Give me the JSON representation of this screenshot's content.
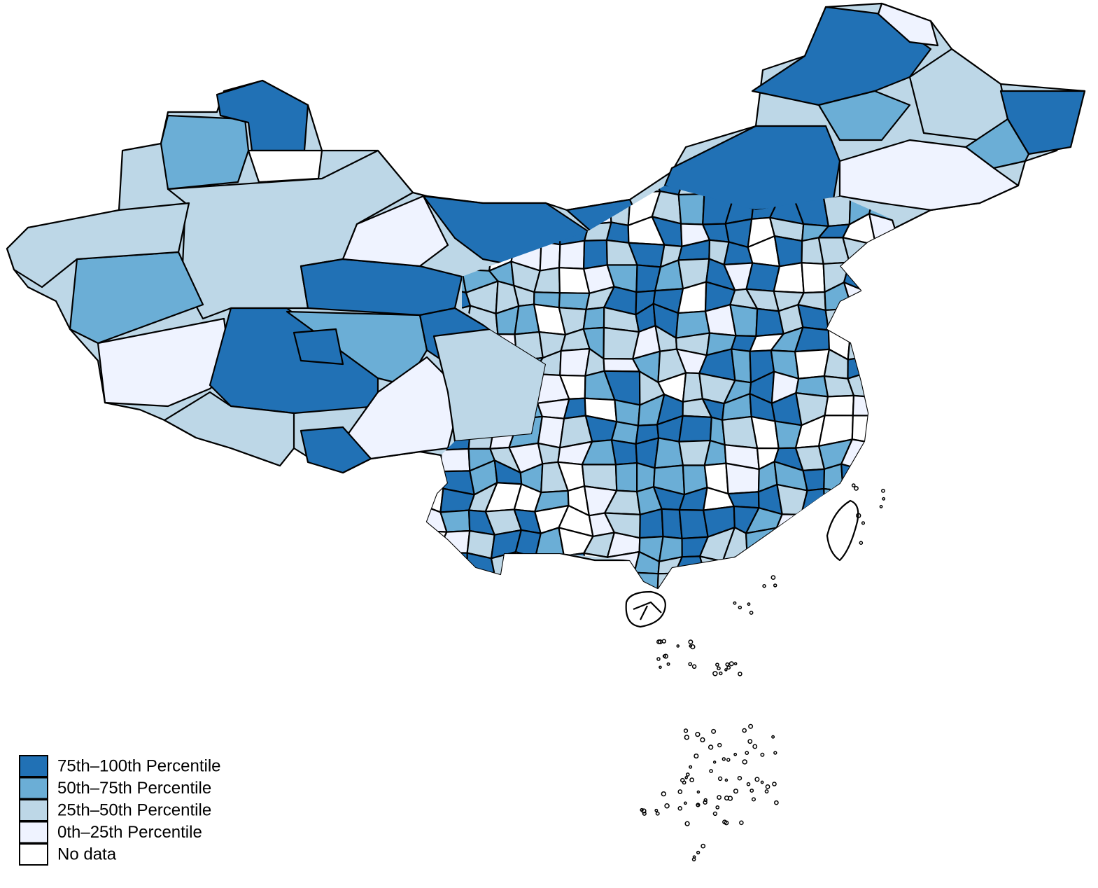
{
  "legend": {
    "items": [
      {
        "label": "75th–100th Percentile",
        "color": "#2171b5"
      },
      {
        "label": "50th–75th Percentile",
        "color": "#6baed6"
      },
      {
        "label": "25th–50th Percentile",
        "color": "#bdd7e7"
      },
      {
        "label": "0th–25th Percentile",
        "color": "#eff3ff"
      },
      {
        "label": "No data",
        "color": "#ffffff"
      }
    ]
  }
}
